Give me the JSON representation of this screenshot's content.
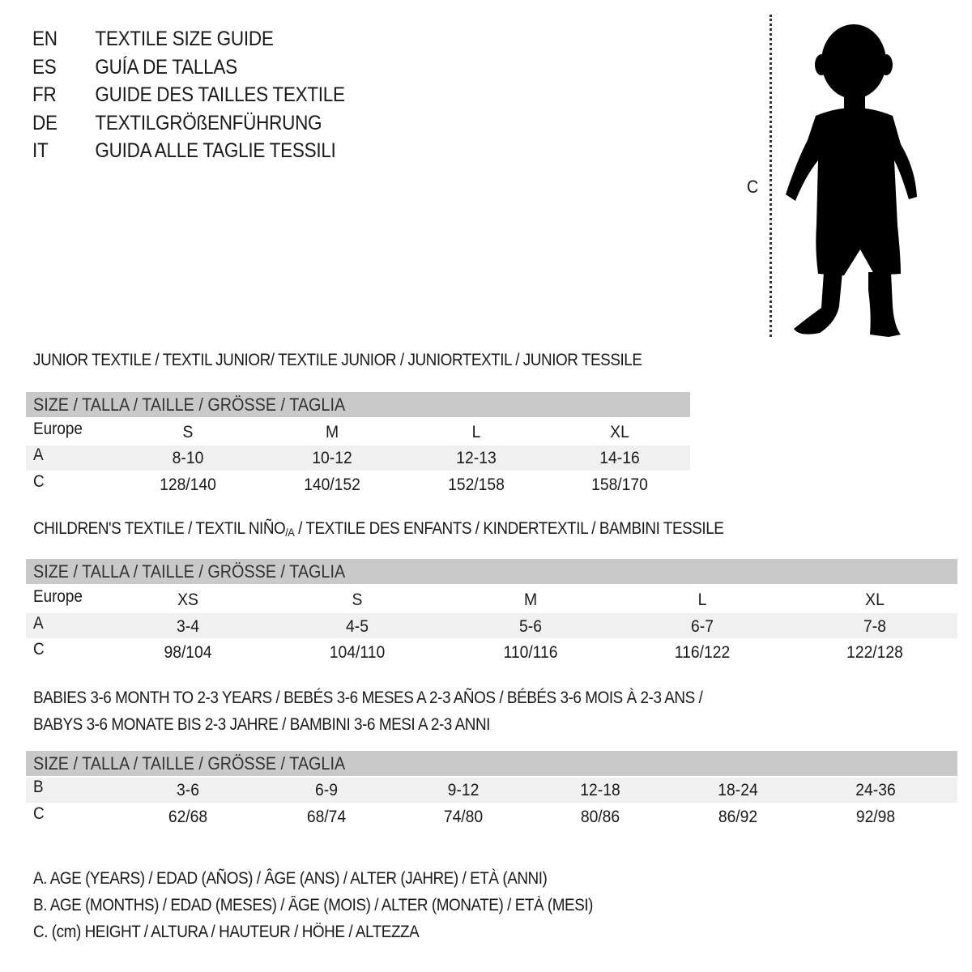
{
  "titles": [
    {
      "code": "EN",
      "text": "TEXTILE SIZE GUIDE"
    },
    {
      "code": "ES",
      "text": "GUÍA DE TALLAS"
    },
    {
      "code": "FR",
      "text": "GUIDE DES TAILLES TEXTILE"
    },
    {
      "code": "DE",
      "text": "TEXTILGRÖßENFÜHRUNG"
    },
    {
      "code": "IT",
      "text": "GUIDA ALLE TAGLIE TESSILI"
    }
  ],
  "figure": {
    "height_label": "C",
    "icon": "child-silhouette"
  },
  "header_label": "SIZE / TALLA / TAILLE / GRÖSSE / TAGLIA",
  "colors": {
    "header_band": "#c9c9c9",
    "shaded_row": "#f0f0f0"
  },
  "junior": {
    "section_title": "JUNIOR TEXTILE / TEXTIL JUNIOR/ TEXTILE JUNIOR / JUNIORTEXTIL / JUNIOR TESSILE",
    "rows": [
      {
        "label": "Europe",
        "values": [
          "S",
          "M",
          "L",
          "XL"
        ]
      },
      {
        "label": "A",
        "values": [
          "8-10",
          "10-12",
          "12-13",
          "14-16"
        ]
      },
      {
        "label": "C",
        "values": [
          "128/140",
          "140/152",
          "152/158",
          "158/170"
        ]
      }
    ]
  },
  "children": {
    "section_title_a": "CHILDREN'S TEXTILE / TEXTIL NIÑO",
    "section_title_sub": "/A",
    "section_title_b": " / TEXTILE DES ENFANTS / KINDERTEXTIL / BAMBINI TESSILE",
    "rows": [
      {
        "label": "Europe",
        "values": [
          "XS",
          "S",
          "M",
          "L",
          "XL"
        ]
      },
      {
        "label": "A",
        "values": [
          "3-4",
          "4-5",
          "5-6",
          "6-7",
          "7-8"
        ]
      },
      {
        "label": "C",
        "values": [
          "98/104",
          "104/110",
          "110/116",
          "116/122",
          "122/128"
        ]
      }
    ]
  },
  "babies": {
    "section_title_line1": "BABIES 3-6 MONTH TO 2-3 YEARS / BEBÉS 3-6 MESES A 2-3 AÑOS / BÉBÉS 3-6 MOIS À 2-3 ANS /",
    "section_title_line2": "BABYS 3-6 MONATE BIS 2-3 JAHRE / BAMBINI 3-6 MESI A 2-3 ANNI",
    "rows": [
      {
        "label": "B",
        "values": [
          "3-6",
          "6-9",
          "9-12",
          "12-18",
          "18-24",
          "24-36"
        ]
      },
      {
        "label": "C",
        "values": [
          "62/68",
          "68/74",
          "74/80",
          "80/86",
          "86/92",
          "92/98"
        ]
      }
    ]
  },
  "legend": [
    "A. AGE (YEARS) / EDAD (AÑOS) / ÂGE (ANS) / ALTER (JAHRE) / ETÀ (ANNI)",
    "B. AGE (MONTHS) / EDAD (MESES) / ÂGE (MOIS) / ALTER (MONATE) / ETÀ (MESI)",
    "C. (cm) HEIGHT / ALTURA / HAUTEUR / HÖHE / ALTEZZA"
  ]
}
